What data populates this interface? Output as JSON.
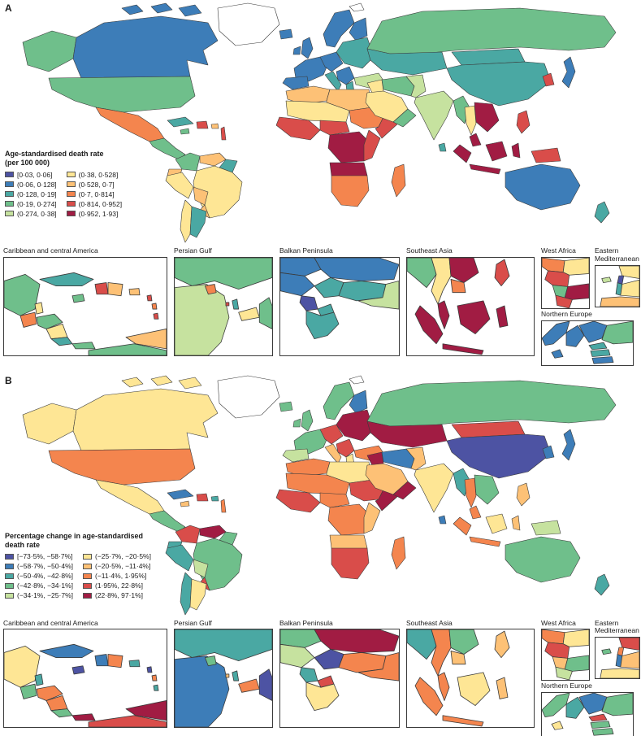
{
  "figure": {
    "panel_a_label": "A",
    "panel_b_label": "B"
  },
  "legend_a": {
    "title_line1": "Age-standardised death rate",
    "title_line2": "(per 100 000)",
    "items": [
      {
        "label": "[0·03, 0·06]",
        "color": "#4d53a3"
      },
      {
        "label": "(0·06, 0·128]",
        "color": "#3d7db8"
      },
      {
        "label": "(0·128, 0·19]",
        "color": "#4aa8a3"
      },
      {
        "label": "(0·19, 0·274]",
        "color": "#6fbf8b"
      },
      {
        "label": "(0·274, 0·38]",
        "color": "#c6e29f"
      },
      {
        "label": "(0·38, 0·528]",
        "color": "#fee695"
      },
      {
        "label": "(0·528, 0·7]",
        "color": "#fdc176"
      },
      {
        "label": "(0·7, 0·814]",
        "color": "#f4854e"
      },
      {
        "label": "(0·814, 0·952]",
        "color": "#d94d4a"
      },
      {
        "label": "(0·952, 1·93]",
        "color": "#a11c43"
      }
    ]
  },
  "legend_b": {
    "title_line1": "Percentage change in age-standardised",
    "title_line2": "death rate",
    "items": [
      {
        "label": "[−73·5%, −58·7%]",
        "color": "#4d53a3"
      },
      {
        "label": "(−58·7%, −50·4%]",
        "color": "#3d7db8"
      },
      {
        "label": "(−50·4%, −42·8%]",
        "color": "#4aa8a3"
      },
      {
        "label": "(−42·8%, −34·1%]",
        "color": "#6fbf8b"
      },
      {
        "label": "(−34·1%, −25·7%]",
        "color": "#c6e29f"
      },
      {
        "label": "(−25·7%, −20·5%]",
        "color": "#fee695"
      },
      {
        "label": "(−20·5%, −11·4%]",
        "color": "#fdc176"
      },
      {
        "label": "(−11·4%, 1·95%]",
        "color": "#f4854e"
      },
      {
        "label": "(1·95%, 22·8%]",
        "color": "#d94d4a"
      },
      {
        "label": "(22·8%, 97·1%]",
        "color": "#a11c43"
      }
    ]
  },
  "insets": {
    "titles": [
      "Caribbean and central America",
      "Persian Gulf",
      "Balkan Peninsula",
      "Southeast Asia",
      "West Africa",
      "Eastern Mediterranean",
      "Northern Europe"
    ]
  },
  "map_a": {
    "regions": {
      "greenland": "#ffffff",
      "svalbard": "#ffffff",
      "arctic-islands-1": "#3d7db8",
      "arctic-islands-2": "#3d7db8",
      "arctic-islands-3": "#3d7db8",
      "alaska": "#6fbf8b",
      "canada": "#3d7db8",
      "usa": "#6fbf8b",
      "mexico": "#f4854e",
      "central-america": "#6fbf8b",
      "cuba": "#4aa8a3",
      "jamaica": "#6fbf8b",
      "hispaniola": "#d94d4a",
      "puerto-rico": "#fdc176",
      "lesser-antilles": "#d94d4a",
      "colombia": "#6fbf8b",
      "venezuela": "#fdc176",
      "guyanas": "#4aa8a3",
      "ecuador": "#fdc176",
      "peru": "#fee695",
      "brazil": "#fee695",
      "bolivia": "#fdc176",
      "paraguay": "#fdc176",
      "chile": "#fee695",
      "argentina": "#4aa8a3",
      "iceland": "#3d7db8",
      "ireland": "#3d7db8",
      "uk": "#3d7db8",
      "scandinavia": "#3d7db8",
      "finland": "#3d7db8",
      "west-europe": "#3d7db8",
      "iberia": "#3d7db8",
      "central-europe": "#3d7db8",
      "italy": "#4aa8a3",
      "east-europe": "#4aa8a3",
      "balkans": "#3d7db8",
      "greece": "#4aa8a3",
      "turkey": "#c6e29f",
      "maghreb": "#fdc176",
      "libya-egypt": "#fdc176",
      "sahel": "#fee695",
      "west-africa": "#d94d4a",
      "nigeria": "#d94d4a",
      "sudan": "#f4854e",
      "horn": "#d94d4a",
      "central-africa": "#a11c43",
      "east-africa": "#d94d4a",
      "angola-zambia": "#a11c43",
      "southern-africa": "#f4854e",
      "madagascar": "#f4854e",
      "levant": "#fee695",
      "saudi": "#fee695",
      "yemen-oman": "#6fbf8b",
      "iran": "#6fbf8b",
      "pakistan-afghan": "#c6e29f",
      "india": "#c6e29f",
      "sri-lanka": "#4aa8a3",
      "russia": "#6fbf8b",
      "kazakhstan": "#4aa8a3",
      "mongolia": "#4aa8a3",
      "china": "#4aa8a3",
      "korea": "#d94d4a",
      "japan": "#3d7db8",
      "myanmar": "#6fbf8b",
      "thailand": "#fee695",
      "indochina": "#a11c43",
      "malaysia": "#a11c43",
      "sumatra": "#a11c43",
      "java": "#a11c43",
      "borneo": "#a11c43",
      "sulawesi": "#a11c43",
      "new-guinea": "#d94d4a",
      "philippines": "#d94d4a",
      "australia": "#3d7db8",
      "new-zealand": "#4aa8a3"
    }
  },
  "map_b": {
    "regions": {
      "greenland": "#ffffff",
      "svalbard": "#ffffff",
      "arctic-islands-1": "#fee695",
      "arctic-islands-2": "#fee695",
      "arctic-islands-3": "#fee695",
      "alaska": "#fee695",
      "canada": "#fee695",
      "usa": "#f4854e",
      "mexico": "#fee695",
      "central-america": "#6fbf8b",
      "cuba": "#3d7db8",
      "jamaica": "#fdc176",
      "hispaniola": "#d94d4a",
      "puerto-rico": "#4aa8a3",
      "lesser-antilles": "#f4854e",
      "colombia": "#d94d4a",
      "venezuela": "#a11c43",
      "guyanas": "#6fbf8b",
      "ecuador": "#4aa8a3",
      "peru": "#4aa8a3",
      "brazil": "#6fbf8b",
      "bolivia": "#c6e29f",
      "paraguay": "#d94d4a",
      "chile": "#4aa8a3",
      "argentina": "#fee695",
      "iceland": "#6fbf8b",
      "ireland": "#6fbf8b",
      "uk": "#6fbf8b",
      "scandinavia": "#6fbf8b",
      "finland": "#3d7db8",
      "west-europe": "#6fbf8b",
      "iberia": "#c6e29f",
      "central-europe": "#d94d4a",
      "italy": "#fdc176",
      "east-europe": "#a11c43",
      "balkans": "#d94d4a",
      "greece": "#fee695",
      "turkey": "#f4854e",
      "maghreb": "#f4854e",
      "libya-egypt": "#fee695",
      "sahel": "#f4854e",
      "west-africa": "#d94d4a",
      "nigeria": "#f4854e",
      "sudan": "#d94d4a",
      "horn": "#a11c43",
      "central-africa": "#f4854e",
      "east-africa": "#fdc176",
      "angola-zambia": "#fdc176",
      "southern-africa": "#d94d4a",
      "madagascar": "#f4854e",
      "levant": "#a11c43",
      "saudi": "#fdc176",
      "yemen-oman": "#a11c43",
      "iran": "#3d7db8",
      "pakistan-afghan": "#fdc176",
      "india": "#fee695",
      "sri-lanka": "#3d7db8",
      "russia": "#6fbf8b",
      "kazakhstan": "#a11c43",
      "mongolia": "#d94d4a",
      "china": "#4d53a3",
      "korea": "#3d7db8",
      "japan": "#3d7db8",
      "myanmar": "#4aa8a3",
      "thailand": "#f4854e",
      "indochina": "#6fbf8b",
      "malaysia": "#f4854e",
      "sumatra": "#f4854e",
      "java": "#f4854e",
      "borneo": "#fee695",
      "sulawesi": "#fdc176",
      "new-guinea": "#c6e29f",
      "philippines": "#fdc176",
      "australia": "#6fbf8b",
      "new-zealand": "#4aa8a3"
    }
  },
  "inset_colors": {
    "a": {
      "caribbean": [
        "#6fbf8b",
        "#fee695",
        "#f4854e",
        "#6fbf8b",
        "#fee695",
        "#4aa8a3",
        "#6fbf8b",
        "#6fbf8b",
        "#fdc176",
        "#4aa8a3",
        "#6fbf8b",
        "#d94d4a",
        "#fdc176",
        "#fdc176",
        "#d94d4a",
        "#f4854e",
        "#d94d4a"
      ],
      "persian_gulf": [
        "#6fbf8b",
        "#c6e29f",
        "#f4854e",
        "#d94d4a",
        "#4aa8a3",
        "#fee695",
        "#6fbf8b"
      ],
      "balkan": [
        "#3d7db8",
        "#3d7db8",
        "#3d7db8",
        "#4aa8a3",
        "#4aa8a3",
        "#4d53a3",
        "#4aa8a3",
        "#4aa8a3",
        "#c6e29f"
      ],
      "southeast_asia": [
        "#6fbf8b",
        "#fee695",
        "#a11c43",
        "#f4854e",
        "#a11c43",
        "#a11c43",
        "#a11c43",
        "#a11c43",
        "#a11c43",
        "#d94d4a"
      ],
      "west_africa": [
        "#f4854e",
        "#fee695",
        "#d94d4a",
        "#6fbf8b",
        "#a11c43",
        "#d94d4a"
      ],
      "east_med": [
        "#c6e29f",
        "#fee695",
        "#4d53a3",
        "#4aa8a3",
        "#fee695",
        "#fdc176"
      ],
      "northern_europe": [
        "#3d7db8",
        "#3d7db8",
        "#3d7db8",
        "#4aa8a3",
        "#4aa8a3",
        "#3d7db8",
        "#3d7db8",
        "#6fbf8b"
      ]
    },
    "b": {
      "caribbean": [
        "#fee695",
        "#4aa8a3",
        "#6fbf8b",
        "#f4854e",
        "#f4854e",
        "#6fbf8b",
        "#a11c43",
        "#d94d4a",
        "#a11c43",
        "#3d7db8",
        "#4d53a3",
        "#3d7db8",
        "#f4854e",
        "#4aa8a3",
        "#4d53a3",
        "#f4854e",
        "#4aa8a3"
      ],
      "persian_gulf": [
        "#4aa8a3",
        "#3d7db8",
        "#6fbf8b",
        "#fdc176",
        "#4aa8a3",
        "#f4854e",
        "#4d53a3"
      ],
      "balkan": [
        "#6fbf8b",
        "#a11c43",
        "#c6e29f",
        "#4d53a3",
        "#f4854e",
        "#4aa8a3",
        "#d94d4a",
        "#fee695",
        "#f4854e"
      ],
      "southeast_asia": [
        "#4aa8a3",
        "#f4854e",
        "#6fbf8b",
        "#fdc176",
        "#f4854e",
        "#f4854e",
        "#f4854e",
        "#fee695",
        "#fdc176",
        "#fdc176"
      ],
      "west_africa": [
        "#f4854e",
        "#fee695",
        "#d94d4a",
        "#fdc176",
        "#6fbf8b",
        "#c6e29f"
      ],
      "east_med": [
        "#6fbf8b",
        "#d94d4a",
        "#f4854e",
        "#3d7db8",
        "#fdc176",
        "#fee695"
      ],
      "northern_europe": [
        "#6fbf8b",
        "#4aa8a3",
        "#3d7db8",
        "#d94d4a",
        "#6fbf8b",
        "#6fbf8b",
        "#fee695",
        "#6fbf8b"
      ]
    }
  }
}
